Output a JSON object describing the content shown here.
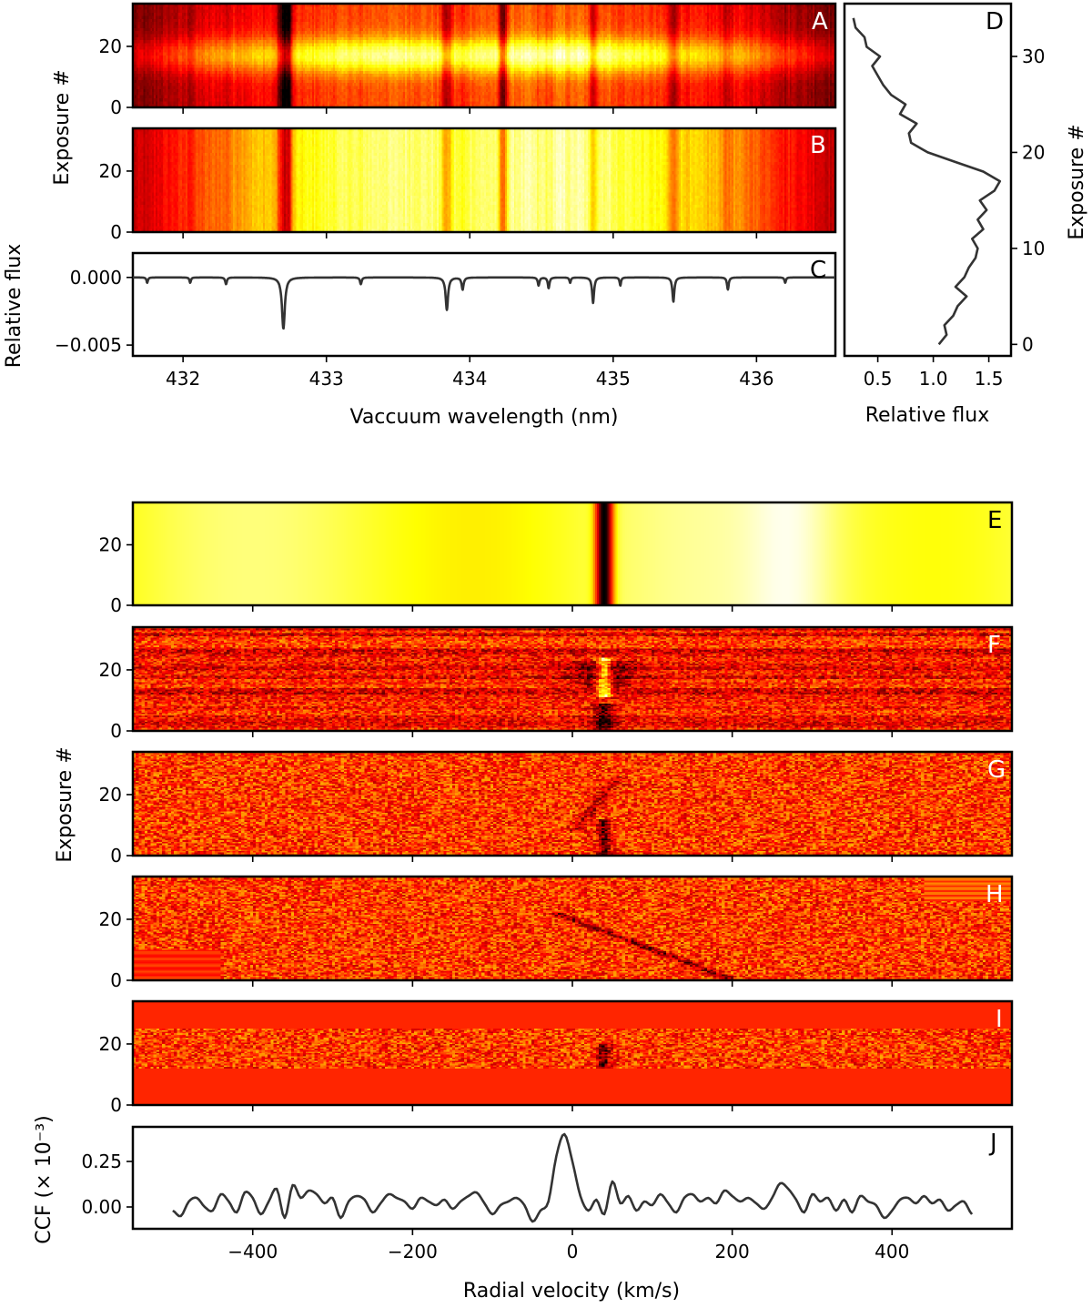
{
  "colors": {
    "curve": "#333333",
    "frame": "#000000",
    "heatmap_low": "#000000",
    "heatmap_mid": "#ff2a00",
    "heatmap_high": "#ffffff"
  },
  "labels": {
    "exposure_upper": "Exposure #",
    "relative_flux_c": "Relative flux",
    "wavelength": "Vaccuum wavelength (nm)",
    "relative_flux_d": "Relative flux",
    "exposure_d": "Exposure #",
    "exposure_lower": "Exposure #",
    "ccf": "CCF (× 10⁻³)",
    "radial_velocity": "Radial velocity (km/s)"
  },
  "chart_data": [
    {
      "panel": "A",
      "type": "heatmap",
      "colormap": "hot",
      "xlim": [
        431.65,
        436.55
      ],
      "ylim": [
        0,
        34
      ],
      "yticks": [
        "0",
        "20"
      ],
      "description_values": {
        "bright_exposure_band": [
          13,
          22
        ]
      }
    },
    {
      "panel": "B",
      "type": "heatmap",
      "colormap": "hot",
      "xlim": [
        431.65,
        436.55
      ],
      "ylim": [
        0,
        34
      ],
      "yticks": [
        "0",
        "20"
      ]
    },
    {
      "panel": "C",
      "type": "line",
      "xlim": [
        431.65,
        436.55
      ],
      "ylim": [
        -0.0058,
        0.0018
      ],
      "xticks": [
        "432",
        "433",
        "434",
        "435",
        "436"
      ],
      "yticks": [
        "0.000",
        "−0.005"
      ],
      "lines": [
        {
          "x": 432.7,
          "depth": -0.0038,
          "width": 0.012
        },
        {
          "x": 433.84,
          "depth": -0.0024,
          "width": 0.01
        },
        {
          "x": 433.95,
          "depth": -0.0009,
          "width": 0.008
        },
        {
          "x": 434.86,
          "depth": -0.0019,
          "width": 0.008
        },
        {
          "x": 435.42,
          "depth": -0.0018,
          "width": 0.008
        },
        {
          "x": 435.8,
          "depth": -0.0009,
          "width": 0.007
        },
        {
          "x": 433.24,
          "depth": -0.0005,
          "width": 0.007
        },
        {
          "x": 434.55,
          "depth": -0.0008,
          "width": 0.007
        },
        {
          "x": 434.48,
          "depth": -0.0006,
          "width": 0.007
        },
        {
          "x": 432.3,
          "depth": -0.0005,
          "width": 0.007
        },
        {
          "x": 432.05,
          "depth": -0.0004,
          "width": 0.006
        },
        {
          "x": 434.7,
          "depth": -0.0004,
          "width": 0.006
        },
        {
          "x": 435.05,
          "depth": -0.0006,
          "width": 0.006
        },
        {
          "x": 436.2,
          "depth": -0.0004,
          "width": 0.006
        },
        {
          "x": 431.75,
          "depth": -0.0004,
          "width": 0.006
        }
      ]
    },
    {
      "panel": "D",
      "type": "line",
      "xlim": [
        0.2,
        1.7
      ],
      "ylim": [
        -1.2,
        35.5
      ],
      "xticks": [
        "0.5",
        "1.0",
        "1.5"
      ],
      "yticks": [
        "0",
        "10",
        "20",
        "30"
      ],
      "x": [
        1.05,
        1.12,
        1.1,
        1.18,
        1.22,
        1.3,
        1.2,
        1.28,
        1.32,
        1.38,
        1.4,
        1.35,
        1.45,
        1.4,
        1.48,
        1.42,
        1.55,
        1.6,
        1.45,
        1.2,
        0.95,
        0.8,
        0.78,
        0.85,
        0.7,
        0.75,
        0.62,
        0.55,
        0.5,
        0.45,
        0.52,
        0.4,
        0.38,
        0.3,
        0.28
      ],
      "y": [
        0,
        1,
        2,
        3,
        4,
        5,
        6,
        7,
        8,
        9,
        10,
        11,
        12,
        13,
        14,
        15,
        16,
        17,
        18,
        19,
        20,
        21,
        22,
        23,
        24,
        25,
        26,
        27,
        28,
        29,
        30,
        31,
        32,
        33,
        34
      ]
    },
    {
      "panel": "E",
      "type": "heatmap",
      "colormap": "hot",
      "xlim": [
        -550,
        550
      ],
      "ylim": [
        0,
        34
      ],
      "yticks": [
        "0",
        "20"
      ],
      "feature_rv": 40
    },
    {
      "panel": "F",
      "type": "heatmap",
      "colormap": "hot",
      "xlim": [
        -550,
        550
      ],
      "ylim": [
        0,
        34
      ],
      "yticks": [
        "0",
        "20"
      ],
      "feature_rv": 40
    },
    {
      "panel": "G",
      "type": "heatmap",
      "colormap": "hot",
      "xlim": [
        -550,
        550
      ],
      "ylim": [
        0,
        34
      ],
      "yticks": [
        "0",
        "20"
      ],
      "feature_rv": 40
    },
    {
      "panel": "H",
      "type": "heatmap",
      "colormap": "hot",
      "xlim": [
        -550,
        550
      ],
      "ylim": [
        0,
        34
      ],
      "yticks": [
        "0",
        "20"
      ],
      "feature_rv": 40
    },
    {
      "panel": "I",
      "type": "heatmap",
      "colormap": "hot",
      "xlim": [
        -550,
        550
      ],
      "ylim": [
        0,
        34
      ],
      "yticks": [
        "0",
        "20"
      ],
      "feature_rv": 40
    },
    {
      "panel": "J",
      "type": "line",
      "xlim": [
        -550,
        550
      ],
      "ylim": [
        -0.12,
        0.44
      ],
      "xticks": [
        "−400",
        "−200",
        "0",
        "200",
        "400"
      ],
      "yticks": [
        "0.00",
        "0.25"
      ],
      "x_start": -500,
      "x_step": 10,
      "y": [
        -0.02,
        -0.05,
        0.03,
        0.05,
        0.0,
        -0.02,
        0.07,
        0.03,
        -0.03,
        0.08,
        0.05,
        -0.04,
        0.03,
        0.1,
        -0.06,
        0.12,
        0.05,
        0.09,
        0.07,
        0.02,
        0.05,
        -0.06,
        0.03,
        0.06,
        0.04,
        -0.03,
        0.02,
        0.07,
        0.05,
        0.03,
        -0.01,
        0.05,
        0.03,
        0.01,
        0.04,
        -0.01,
        0.03,
        0.06,
        0.08,
        0.02,
        -0.04,
        0.01,
        0.03,
        0.05,
        0.01,
        -0.08,
        -0.02,
        0.03,
        0.28,
        0.4,
        0.25,
        0.06,
        -0.02,
        0.04,
        -0.04,
        0.14,
        0.02,
        0.06,
        -0.02,
        0.03,
        0.01,
        0.07,
        0.02,
        -0.03,
        0.05,
        0.07,
        0.03,
        0.05,
        0.02,
        0.09,
        0.06,
        0.03,
        0.05,
        0.02,
        -0.01,
        0.05,
        0.13,
        0.1,
        0.04,
        -0.03,
        0.07,
        0.03,
        0.05,
        -0.02,
        0.04,
        -0.03,
        0.06,
        0.03,
        0.01,
        -0.06,
        -0.02,
        0.04,
        0.05,
        0.02,
        0.06,
        0.02,
        0.04,
        -0.02,
        0.01,
        0.03,
        -0.04
      ]
    }
  ],
  "panel_letters": [
    "A",
    "B",
    "C",
    "D",
    "E",
    "F",
    "G",
    "H",
    "I",
    "J"
  ]
}
